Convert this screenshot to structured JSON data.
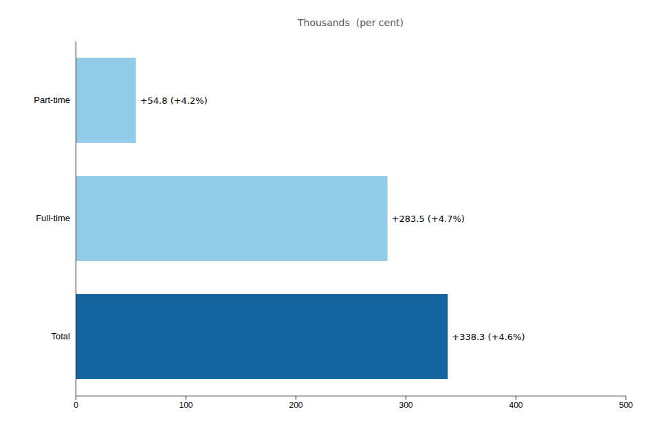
{
  "chart_data": {
    "type": "bar",
    "orientation": "horizontal",
    "title": "Thousands  (per cent)",
    "categories": [
      "Total",
      "Full-time",
      "Part-time"
    ],
    "values": [
      338.3,
      283.5,
      54.8
    ],
    "value_labels": [
      "+338.3 (+4.6%)",
      "+283.5 (+4.7%)",
      "+54.8 (+4.2%)"
    ],
    "data_labels": true,
    "colors": [
      "#1464a0",
      "#92cce8",
      "#92cce8"
    ],
    "xlim": [
      0,
      500
    ],
    "xticks": [
      0,
      100,
      200,
      300,
      400,
      500
    ],
    "grid": false
  }
}
